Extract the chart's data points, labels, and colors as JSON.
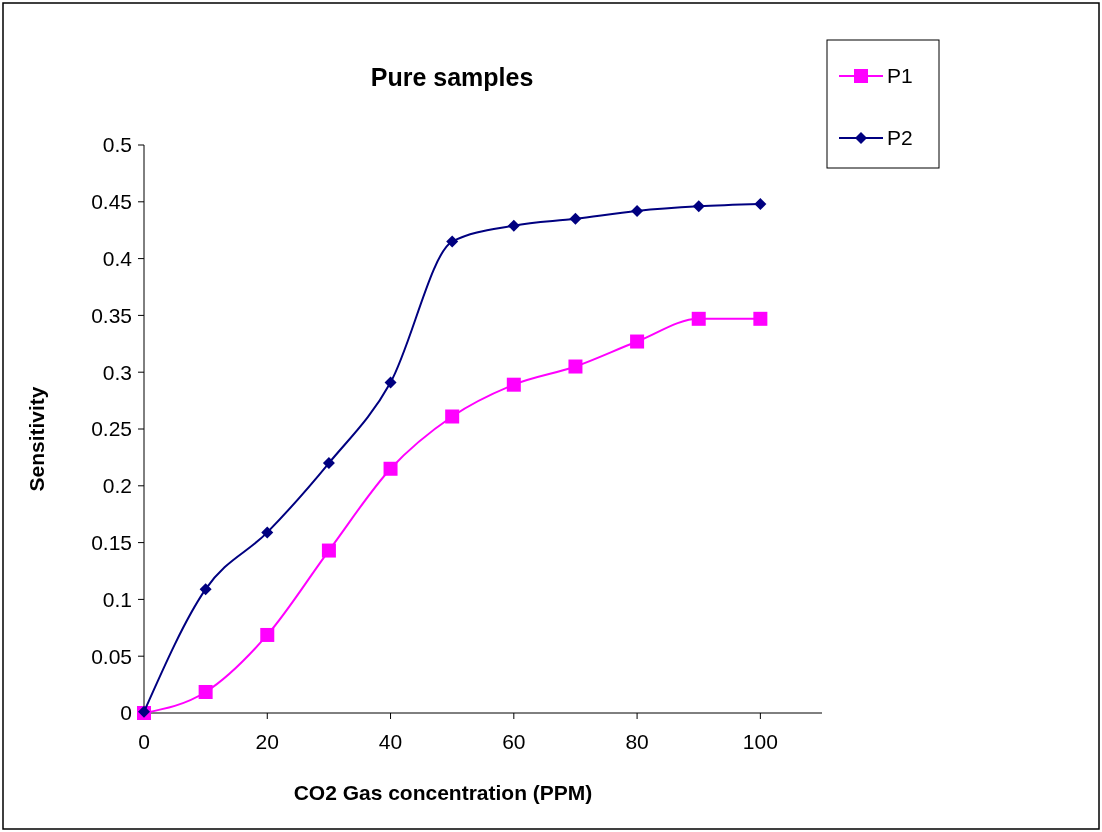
{
  "chart_data": {
    "type": "line",
    "title": "Pure samples",
    "xlabel": "CO2 Gas concentration (PPM)",
    "ylabel": "Sensitivity",
    "x": [
      0,
      10,
      20,
      30,
      40,
      50,
      60,
      70,
      80,
      90,
      100
    ],
    "series": [
      {
        "name": "P1",
        "color": "#ff00ff",
        "marker": "square",
        "values": [
          0,
          0.0185,
          0.0687,
          0.143,
          0.215,
          0.261,
          0.289,
          0.305,
          0.327,
          0.347,
          0.347
        ]
      },
      {
        "name": "P2",
        "color": "#000080",
        "marker": "diamond",
        "values": [
          0.001,
          0.109,
          0.159,
          0.22,
          0.291,
          0.415,
          0.429,
          0.435,
          0.442,
          0.446,
          0.448
        ]
      }
    ],
    "xlim": [
      0,
      110
    ],
    "xticks": [
      0,
      20,
      40,
      60,
      80,
      100
    ],
    "ylim": [
      0,
      0.5
    ],
    "yticks": [
      0,
      0.05,
      0.1,
      0.15,
      0.2,
      0.25,
      0.3,
      0.35,
      0.4,
      0.45,
      0.5
    ],
    "grid": false,
    "legend": "top right",
    "line_style": "solid"
  }
}
